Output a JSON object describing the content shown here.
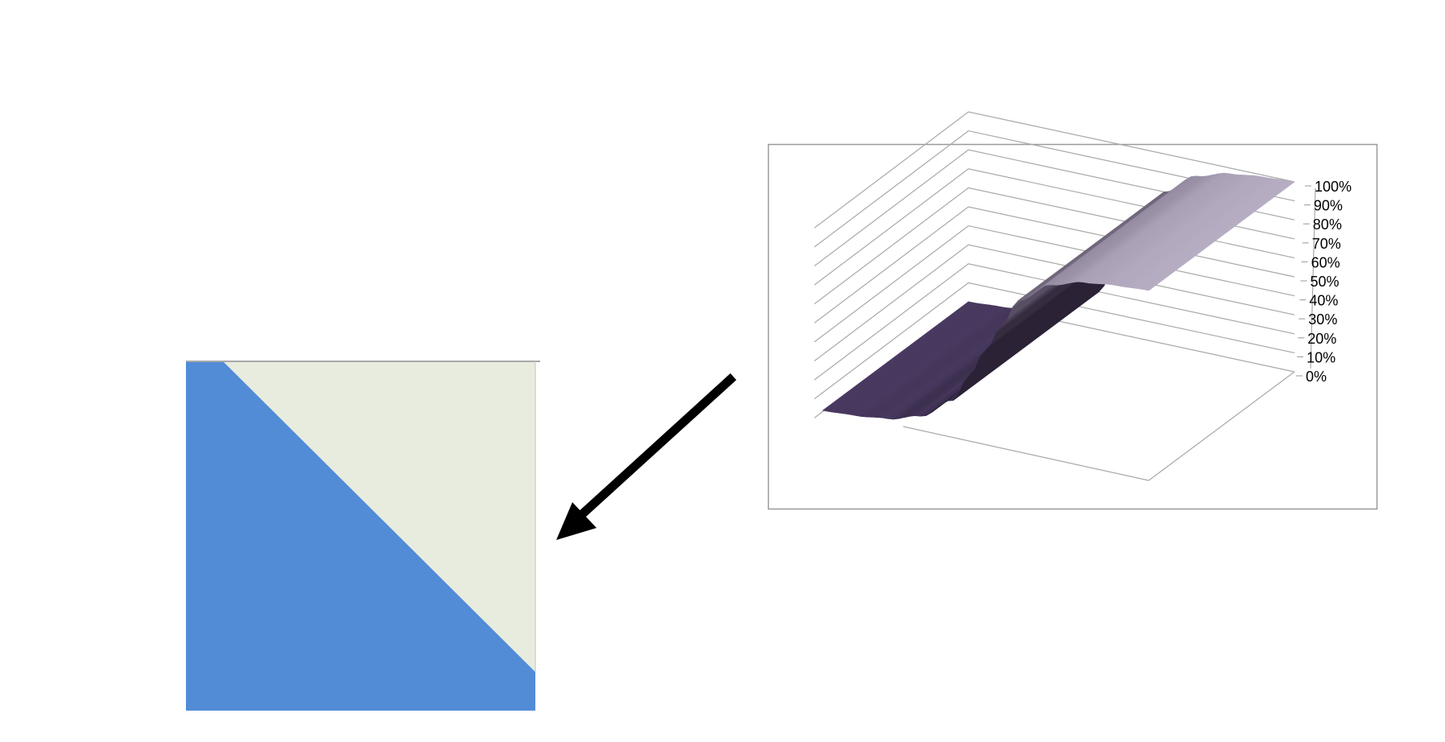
{
  "colors": {
    "square_blue": "#528bd6",
    "square_cream": "#e8ecde",
    "arrow": "#000000",
    "surface_low": "#4a3a62",
    "surface_mid": "#2b2236",
    "surface_high": "#b6adc3",
    "grid": "#a8a8a8",
    "frame": "#999999"
  },
  "icons": {
    "arrow": "arrow-down-left-icon"
  },
  "chart_data": {
    "type": "surface-3d",
    "title": "",
    "xlabel": "",
    "ylabel": "",
    "zlim": [
      0,
      100
    ],
    "z_unit": "%",
    "grid": true,
    "z_tick_labels": [
      "0%",
      "10%",
      "20%",
      "30%",
      "40%",
      "50%",
      "60%",
      "70%",
      "80%",
      "90%",
      "100%"
    ],
    "profile": {
      "shape": "sigmoid",
      "x": [
        0,
        0.1,
        0.2,
        0.3,
        0.4,
        0.45,
        0.5,
        0.55,
        0.6,
        0.7,
        0.8,
        0.9,
        1.0
      ],
      "z": [
        0,
        1,
        3,
        8,
        20,
        35,
        50,
        65,
        80,
        92,
        97,
        99,
        100
      ]
    }
  }
}
